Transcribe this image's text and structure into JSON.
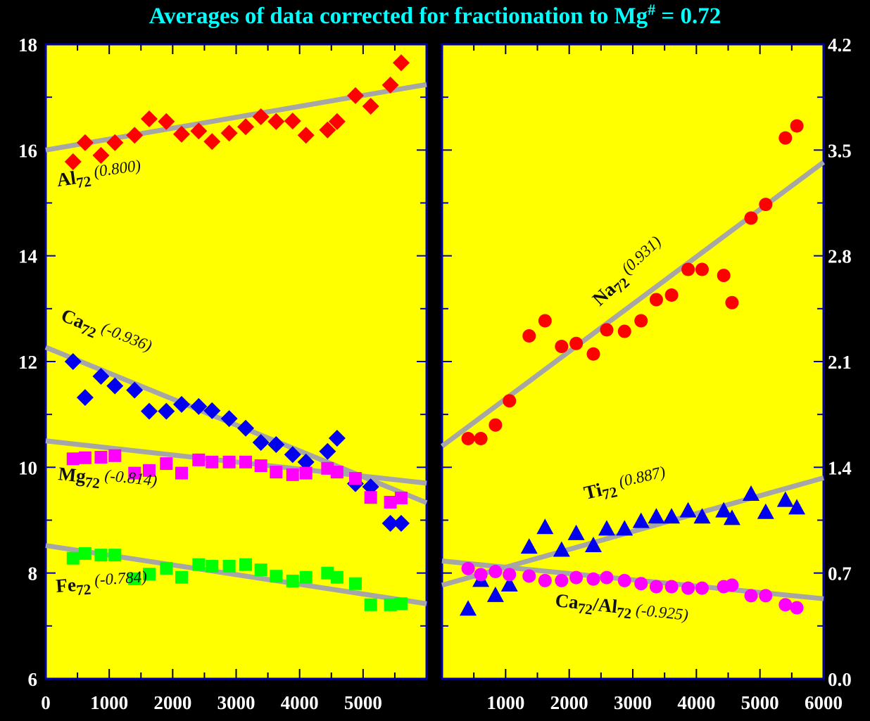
{
  "chart_data": {
    "title": "Averages of data corrected for fractionation to Mg",
    "title_superscript": "#",
    "title_suffix": " = 0.72",
    "colors": {
      "background": "#000000",
      "plot_background": "#FFFF00",
      "axis": "#0000AA",
      "trend": "#A6A6A6",
      "title": "#00FFFF",
      "tick_label": "#FFFFFF"
    },
    "panels": [
      {
        "name": "left",
        "type": "scatter",
        "xlim": [
          0,
          6000
        ],
        "ylim": [
          6,
          18
        ],
        "x_tick_labels": [
          "0",
          "1000",
          "2000",
          "3000",
          "4000",
          "5000"
        ],
        "x_tick_values": [
          0,
          1000,
          2000,
          3000,
          4000,
          5000
        ],
        "y_tick_labels": [
          "6",
          "8",
          "10",
          "12",
          "14",
          "16",
          "18"
        ],
        "y_tick_values": [
          6,
          8,
          10,
          12,
          14,
          16,
          18
        ],
        "y_axis_side": "left",
        "series": [
          {
            "name": "Al72",
            "label_main": "Al",
            "label_sub": "72",
            "r_label": "(0.800)",
            "marker": "diamond",
            "color": "#FF0000",
            "x": [
              430,
              620,
              870,
              1090,
              1400,
              1630,
              1900,
              2140,
              2410,
              2620,
              2890,
              3150,
              3390,
              3630,
              3890,
              4100,
              4440,
              4590,
              4880,
              5120,
              5430,
              5600
            ],
            "y": [
              15.78,
              16.14,
              15.9,
              16.14,
              16.28,
              16.59,
              16.54,
              16.3,
              16.36,
              16.16,
              16.32,
              16.44,
              16.63,
              16.54,
              16.55,
              16.28,
              16.38,
              16.54,
              17.03,
              16.83,
              17.23,
              17.65
            ],
            "trend": [
              [
                0,
                16.0
              ],
              [
                6000,
                17.24
              ]
            ]
          },
          {
            "name": "Ca72",
            "label_main": "Ca",
            "label_sub": "72",
            "r_label": "(-0.936)",
            "marker": "diamond",
            "color": "#0000EE",
            "x": [
              430,
              620,
              870,
              1090,
              1400,
              1630,
              1900,
              2140,
              2410,
              2620,
              2890,
              3150,
              3390,
              3630,
              3890,
              4100,
              4440,
              4590,
              4880,
              5120,
              5430,
              5600
            ],
            "y": [
              12.0,
              11.32,
              11.72,
              11.54,
              11.46,
              11.06,
              11.06,
              11.19,
              11.15,
              11.07,
              10.92,
              10.74,
              10.47,
              10.43,
              10.24,
              10.1,
              10.3,
              10.55,
              9.69,
              9.63,
              8.94,
              8.94
            ],
            "trend": [
              [
                0,
                12.27
              ],
              [
                6000,
                9.33
              ]
            ]
          },
          {
            "name": "Mg72",
            "label_main": "Mg",
            "label_sub": "72",
            "r_label": "(-0.814)",
            "marker": "square",
            "color": "#FF00FF",
            "x": [
              430,
              620,
              870,
              1090,
              1400,
              1630,
              1900,
              2140,
              2410,
              2620,
              2890,
              3150,
              3390,
              3630,
              3890,
              4100,
              4440,
              4590,
              4880,
              5120,
              5430,
              5600
            ],
            "y": [
              10.16,
              10.18,
              10.19,
              10.22,
              9.89,
              9.94,
              10.07,
              9.89,
              10.14,
              10.1,
              10.1,
              10.1,
              10.03,
              9.91,
              9.86,
              9.89,
              9.98,
              9.91,
              9.79,
              9.43,
              9.34,
              9.42
            ],
            "trend": [
              [
                0,
                10.5
              ],
              [
                6000,
                9.7
              ]
            ]
          },
          {
            "name": "Fe72",
            "label_main": "Fe",
            "label_sub": "72",
            "r_label": "(-0.784)",
            "marker": "square",
            "color": "#00FF00",
            "x": [
              430,
              620,
              870,
              1090,
              1400,
              1630,
              1900,
              2140,
              2410,
              2620,
              2890,
              3150,
              3390,
              3630,
              3890,
              4100,
              4440,
              4590,
              4880,
              5120,
              5430,
              5600
            ],
            "y": [
              8.28,
              8.37,
              8.34,
              8.34,
              7.89,
              7.98,
              8.09,
              7.92,
              8.16,
              8.13,
              8.13,
              8.16,
              8.06,
              7.94,
              7.85,
              7.92,
              8.0,
              7.92,
              7.8,
              7.4,
              7.4,
              7.42
            ],
            "trend": [
              [
                0,
                8.52
              ],
              [
                6000,
                7.42
              ]
            ]
          }
        ]
      },
      {
        "name": "right",
        "type": "scatter",
        "xlim": [
          0,
          6000
        ],
        "ylim": [
          0,
          4.2
        ],
        "x_tick_labels": [
          "1000",
          "2000",
          "3000",
          "4000",
          "5000",
          "6000"
        ],
        "x_tick_values": [
          1000,
          2000,
          3000,
          4000,
          5000,
          6000
        ],
        "y_tick_labels": [
          "0.0",
          "0.7",
          "1.4",
          "2.1",
          "2.8",
          "3.5",
          "4.2"
        ],
        "y_tick_values": [
          0,
          0.7,
          1.4,
          2.1,
          2.8,
          3.5,
          4.2
        ],
        "y_axis_side": "right",
        "series": [
          {
            "name": "Na72",
            "label_main": "Na",
            "label_sub": "72",
            "r_label": "(0.931)",
            "marker": "circle",
            "color": "#FF0000",
            "x": [
              410,
              610,
              840,
              1060,
              1370,
              1620,
              1880,
              2110,
              2380,
              2590,
              2870,
              3130,
              3370,
              3610,
              3870,
              4090,
              4430,
              4560,
              4860,
              5090,
              5400,
              5580
            ],
            "y": [
              1.59,
              1.59,
              1.68,
              1.84,
              2.27,
              2.37,
              2.2,
              2.22,
              2.15,
              2.31,
              2.3,
              2.37,
              2.51,
              2.54,
              2.71,
              2.71,
              2.67,
              2.49,
              3.05,
              3.14,
              3.58,
              3.66
            ],
            "trend": [
              [
                0,
                1.54
              ],
              [
                6000,
                3.42
              ]
            ]
          },
          {
            "name": "Ti72",
            "label_main": "Ti",
            "label_sub": "72",
            "r_label": "(0.887)",
            "marker": "triangle",
            "color": "#0000EE",
            "x": [
              410,
              610,
              840,
              1060,
              1370,
              1620,
              1880,
              2110,
              2380,
              2590,
              2870,
              3130,
              3370,
              3610,
              3870,
              4090,
              4430,
              4560,
              4860,
              5090,
              5400,
              5580
            ],
            "y": [
              0.46,
              0.65,
              0.55,
              0.62,
              0.87,
              1.0,
              0.85,
              0.96,
              0.88,
              0.99,
              0.99,
              1.04,
              1.07,
              1.07,
              1.11,
              1.07,
              1.11,
              1.06,
              1.22,
              1.1,
              1.18,
              1.13
            ],
            "trend": [
              [
                0,
                0.62
              ],
              [
                6000,
                1.33
              ]
            ]
          },
          {
            "name": "Ca72/Al72",
            "label_main": "Ca",
            "label_sub": "72",
            "label_main2": "/Al",
            "label_sub2": "72",
            "r_label": "(-0.925)",
            "marker": "circle",
            "color": "#FF00FF",
            "x": [
              410,
              610,
              840,
              1060,
              1370,
              1620,
              1880,
              2110,
              2380,
              2590,
              2870,
              3130,
              3370,
              3610,
              3870,
              4090,
              4430,
              4560,
              4860,
              5090,
              5400,
              5580
            ],
            "y": [
              0.73,
              0.69,
              0.71,
              0.69,
              0.68,
              0.65,
              0.65,
              0.67,
              0.66,
              0.67,
              0.65,
              0.63,
              0.61,
              0.61,
              0.6,
              0.6,
              0.61,
              0.62,
              0.55,
              0.55,
              0.49,
              0.47
            ],
            "trend": [
              [
                0,
                0.78
              ],
              [
                6000,
                0.53
              ]
            ]
          }
        ]
      }
    ]
  }
}
